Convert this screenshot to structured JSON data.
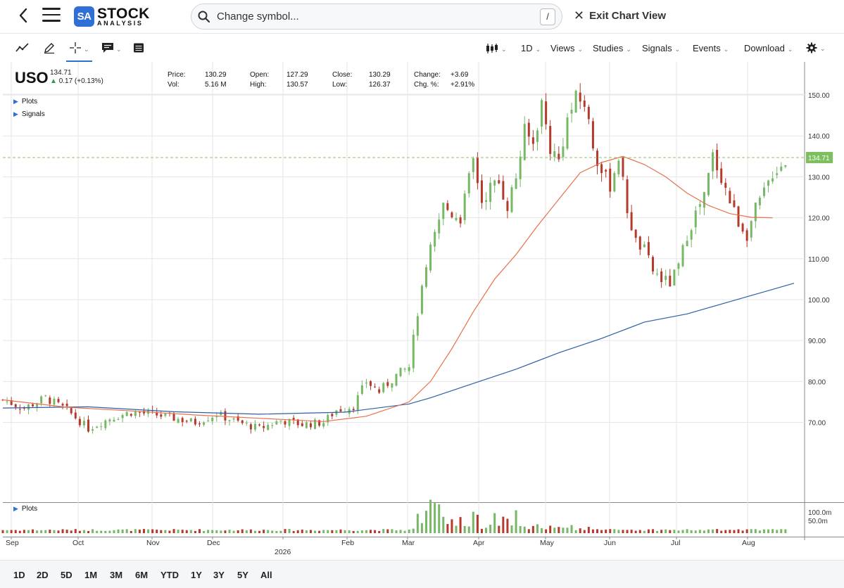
{
  "header": {
    "logo_badge": "SA",
    "logo_line1": "STOCK",
    "logo_line2": "ANALYSIS",
    "search_placeholder": "Change symbol...",
    "search_shortcut": "/",
    "exit_label": "Exit Chart View"
  },
  "toolbar": {
    "left_tools": [
      "trend-line-icon",
      "pencil-icon",
      "crosshair-icon",
      "annotation-icon",
      "table-icon"
    ],
    "interval": "1D",
    "views": "Views",
    "studies": "Studies",
    "signals": "Signals",
    "events": "Events",
    "download": "Download"
  },
  "quote": {
    "symbol": "USO",
    "last": "134.71",
    "change": "0.17 (+0.13%)",
    "price_label": "Price:",
    "price": "130.29",
    "vol_label": "Vol:",
    "vol": "5.16 M",
    "open_label": "Open:",
    "open": "127.29",
    "high_label": "High:",
    "high": "130.57",
    "close_label": "Close:",
    "close": "130.29",
    "low_label": "Low:",
    "low": "126.37",
    "change_label": "Change:",
    "change_val": "+3.69",
    "chgpct_label": "Chg. %:",
    "chgpct": "+2.91%"
  },
  "panels": {
    "plots": "Plots",
    "signals": "Signals",
    "volume_plots": "Plots"
  },
  "chart_data": {
    "type": "candlestick",
    "ylim": [
      65,
      155
    ],
    "y_ticks": [
      "150.00",
      "140.00",
      "130.00",
      "120.00",
      "110.00",
      "100.00",
      "90.00",
      "80.00",
      "70.00"
    ],
    "current_price_label": "134.71",
    "x_ticks": [
      "Sep",
      "Oct",
      "Nov",
      "Dec",
      "2026",
      "Feb",
      "Mar",
      "Apr",
      "May",
      "Jun",
      "Jul",
      "Aug"
    ],
    "volume_ticks": [
      "100.0m",
      "50.0m"
    ],
    "colors": {
      "up": "#76b866",
      "down": "#b63a2c",
      "ma_short": "#e8704a",
      "ma_long": "#2d5fa5"
    },
    "close_path": [
      [
        0,
        75.5
      ],
      [
        5,
        73.5
      ],
      [
        10,
        76
      ],
      [
        15,
        73
      ],
      [
        20,
        68.5
      ],
      [
        25,
        71
      ],
      [
        30,
        72.5
      ],
      [
        35,
        72
      ],
      [
        40,
        71
      ],
      [
        45,
        70
      ],
      [
        50,
        72
      ],
      [
        55,
        70
      ],
      [
        60,
        68.5
      ],
      [
        65,
        70.5
      ],
      [
        70,
        69.5
      ],
      [
        75,
        70
      ],
      [
        78,
        73
      ],
      [
        82,
        74
      ],
      [
        85,
        80
      ],
      [
        88,
        77.5
      ],
      [
        92,
        81.5
      ],
      [
        95,
        83.5
      ],
      [
        97,
        97
      ],
      [
        100,
        112
      ],
      [
        103,
        123
      ],
      [
        105,
        121
      ],
      [
        107,
        120
      ],
      [
        110,
        134
      ],
      [
        112,
        124
      ],
      [
        114,
        127.5
      ],
      [
        116,
        128.5
      ],
      [
        118,
        123
      ],
      [
        120,
        130
      ],
      [
        122,
        141
      ],
      [
        124,
        138
      ],
      [
        126,
        148
      ],
      [
        128,
        137
      ],
      [
        130,
        134
      ],
      [
        132,
        144
      ],
      [
        134,
        149
      ],
      [
        136,
        148
      ],
      [
        138,
        138
      ],
      [
        140,
        131
      ],
      [
        142,
        128
      ],
      [
        144,
        135
      ],
      [
        146,
        122
      ],
      [
        148,
        114
      ],
      [
        150,
        112
      ],
      [
        152,
        107
      ],
      [
        154,
        105
      ],
      [
        156,
        104
      ],
      [
        158,
        108
      ],
      [
        160,
        116
      ],
      [
        162,
        121
      ],
      [
        164,
        125
      ],
      [
        166,
        135
      ],
      [
        168,
        130
      ],
      [
        170,
        124
      ],
      [
        172,
        119
      ],
      [
        174,
        116
      ],
      [
        176,
        122
      ],
      [
        178,
        126
      ],
      [
        180,
        131
      ],
      [
        182,
        133
      ],
      [
        184,
        134.7
      ]
    ],
    "ma_short": [
      [
        0,
        75.5
      ],
      [
        15,
        73.7
      ],
      [
        30,
        72.8
      ],
      [
        45,
        71.8
      ],
      [
        60,
        71
      ],
      [
        75,
        70.2
      ],
      [
        85,
        71.5
      ],
      [
        95,
        75
      ],
      [
        100,
        80
      ],
      [
        105,
        88
      ],
      [
        110,
        97
      ],
      [
        115,
        105
      ],
      [
        120,
        111
      ],
      [
        125,
        118
      ],
      [
        130,
        124.5
      ],
      [
        135,
        131
      ],
      [
        140,
        133.5
      ],
      [
        145,
        135
      ],
      [
        150,
        133
      ],
      [
        155,
        130
      ],
      [
        160,
        126
      ],
      [
        165,
        123
      ],
      [
        170,
        121
      ],
      [
        175,
        120.1
      ],
      [
        180,
        120
      ]
    ],
    "ma_long": [
      [
        0,
        73.5
      ],
      [
        20,
        73.8
      ],
      [
        40,
        72.6
      ],
      [
        60,
        72
      ],
      [
        80,
        72.5
      ],
      [
        95,
        74.5
      ],
      [
        100,
        76
      ],
      [
        110,
        79.5
      ],
      [
        120,
        83
      ],
      [
        130,
        87
      ],
      [
        140,
        90.5
      ],
      [
        145,
        92.5
      ],
      [
        150,
        94.5
      ],
      [
        160,
        96.5
      ],
      [
        170,
        99.5
      ],
      [
        180,
        102.5
      ],
      [
        185,
        104
      ]
    ]
  },
  "ranges": [
    "1D",
    "2D",
    "5D",
    "1M",
    "3M",
    "6M",
    "YTD",
    "1Y",
    "3Y",
    "5Y",
    "All"
  ]
}
